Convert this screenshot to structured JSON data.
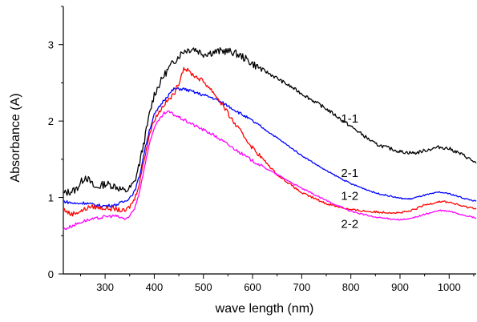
{
  "chart_data": {
    "type": "line",
    "xlabel": "wave length (nm)",
    "ylabel": "Absorbance (A)",
    "xlim": [
      215,
      1055
    ],
    "ylim": [
      0,
      3.5
    ],
    "x_ticks": [
      300,
      400,
      500,
      600,
      700,
      800,
      900,
      1000
    ],
    "y_ticks": [
      0,
      1,
      2,
      3
    ],
    "grid": false,
    "legend": "none (curves labeled directly)",
    "series": [
      {
        "name": "1-1",
        "color": "#000000",
        "noise": 0.05,
        "label_at": [
          780,
          1.98
        ],
        "points": [
          [
            215,
            1.05
          ],
          [
            240,
            1.1
          ],
          [
            260,
            1.28
          ],
          [
            280,
            1.12
          ],
          [
            300,
            1.18
          ],
          [
            320,
            1.15
          ],
          [
            340,
            1.08
          ],
          [
            350,
            1.12
          ],
          [
            360,
            1.2
          ],
          [
            370,
            1.45
          ],
          [
            380,
            1.75
          ],
          [
            390,
            2.08
          ],
          [
            400,
            2.35
          ],
          [
            420,
            2.6
          ],
          [
            440,
            2.78
          ],
          [
            460,
            2.92
          ],
          [
            480,
            2.95
          ],
          [
            500,
            2.88
          ],
          [
            520,
            2.9
          ],
          [
            540,
            2.92
          ],
          [
            560,
            2.9
          ],
          [
            580,
            2.84
          ],
          [
            600,
            2.75
          ],
          [
            650,
            2.56
          ],
          [
            700,
            2.36
          ],
          [
            750,
            2.16
          ],
          [
            800,
            1.93
          ],
          [
            850,
            1.7
          ],
          [
            900,
            1.6
          ],
          [
            930,
            1.58
          ],
          [
            960,
            1.63
          ],
          [
            980,
            1.66
          ],
          [
            1000,
            1.64
          ],
          [
            1030,
            1.55
          ],
          [
            1055,
            1.45
          ]
        ]
      },
      {
        "name": "2-1",
        "color": "#0000ff",
        "noise": 0.02,
        "label_at": [
          780,
          1.27
        ],
        "points": [
          [
            215,
            0.95
          ],
          [
            240,
            0.92
          ],
          [
            260,
            0.93
          ],
          [
            280,
            0.9
          ],
          [
            300,
            0.89
          ],
          [
            320,
            0.9
          ],
          [
            340,
            0.95
          ],
          [
            350,
            1.0
          ],
          [
            360,
            1.08
          ],
          [
            370,
            1.28
          ],
          [
            380,
            1.6
          ],
          [
            390,
            1.88
          ],
          [
            400,
            2.08
          ],
          [
            420,
            2.28
          ],
          [
            440,
            2.42
          ],
          [
            460,
            2.42
          ],
          [
            480,
            2.38
          ],
          [
            500,
            2.34
          ],
          [
            520,
            2.3
          ],
          [
            550,
            2.2
          ],
          [
            600,
            2.0
          ],
          [
            650,
            1.78
          ],
          [
            700,
            1.55
          ],
          [
            750,
            1.35
          ],
          [
            800,
            1.18
          ],
          [
            850,
            1.06
          ],
          [
            900,
            0.99
          ],
          [
            920,
            0.98
          ],
          [
            950,
            1.03
          ],
          [
            980,
            1.07
          ],
          [
            1000,
            1.05
          ],
          [
            1030,
            0.99
          ],
          [
            1055,
            0.95
          ]
        ]
      },
      {
        "name": "1-2",
        "color": "#ff0000",
        "noise": 0.03,
        "label_at": [
          780,
          0.97
        ],
        "points": [
          [
            215,
            0.85
          ],
          [
            230,
            0.78
          ],
          [
            250,
            0.82
          ],
          [
            270,
            0.88
          ],
          [
            300,
            0.86
          ],
          [
            320,
            0.85
          ],
          [
            340,
            0.82
          ],
          [
            350,
            0.88
          ],
          [
            360,
            0.98
          ],
          [
            370,
            1.2
          ],
          [
            380,
            1.52
          ],
          [
            390,
            1.82
          ],
          [
            400,
            2.02
          ],
          [
            420,
            2.22
          ],
          [
            440,
            2.35
          ],
          [
            450,
            2.5
          ],
          [
            460,
            2.7
          ],
          [
            480,
            2.6
          ],
          [
            500,
            2.52
          ],
          [
            520,
            2.38
          ],
          [
            540,
            2.2
          ],
          [
            560,
            2.0
          ],
          [
            600,
            1.65
          ],
          [
            650,
            1.3
          ],
          [
            700,
            1.06
          ],
          [
            750,
            0.92
          ],
          [
            800,
            0.84
          ],
          [
            850,
            0.81
          ],
          [
            900,
            0.8
          ],
          [
            920,
            0.82
          ],
          [
            950,
            0.9
          ],
          [
            980,
            0.95
          ],
          [
            1000,
            0.94
          ],
          [
            1030,
            0.88
          ],
          [
            1055,
            0.86
          ]
        ]
      },
      {
        "name": "2-2",
        "color": "#ff00ff",
        "noise": 0.02,
        "label_at": [
          780,
          0.6
        ],
        "points": [
          [
            215,
            0.58
          ],
          [
            240,
            0.65
          ],
          [
            260,
            0.7
          ],
          [
            280,
            0.72
          ],
          [
            300,
            0.75
          ],
          [
            320,
            0.76
          ],
          [
            340,
            0.72
          ],
          [
            350,
            0.75
          ],
          [
            360,
            0.85
          ],
          [
            370,
            1.08
          ],
          [
            380,
            1.4
          ],
          [
            390,
            1.7
          ],
          [
            400,
            1.92
          ],
          [
            420,
            2.1
          ],
          [
            430,
            2.12
          ],
          [
            450,
            2.05
          ],
          [
            480,
            1.95
          ],
          [
            520,
            1.82
          ],
          [
            560,
            1.65
          ],
          [
            600,
            1.48
          ],
          [
            650,
            1.3
          ],
          [
            700,
            1.12
          ],
          [
            750,
            0.96
          ],
          [
            800,
            0.82
          ],
          [
            850,
            0.74
          ],
          [
            900,
            0.71
          ],
          [
            920,
            0.72
          ],
          [
            950,
            0.78
          ],
          [
            980,
            0.83
          ],
          [
            1000,
            0.82
          ],
          [
            1030,
            0.77
          ],
          [
            1055,
            0.73
          ]
        ]
      }
    ]
  }
}
